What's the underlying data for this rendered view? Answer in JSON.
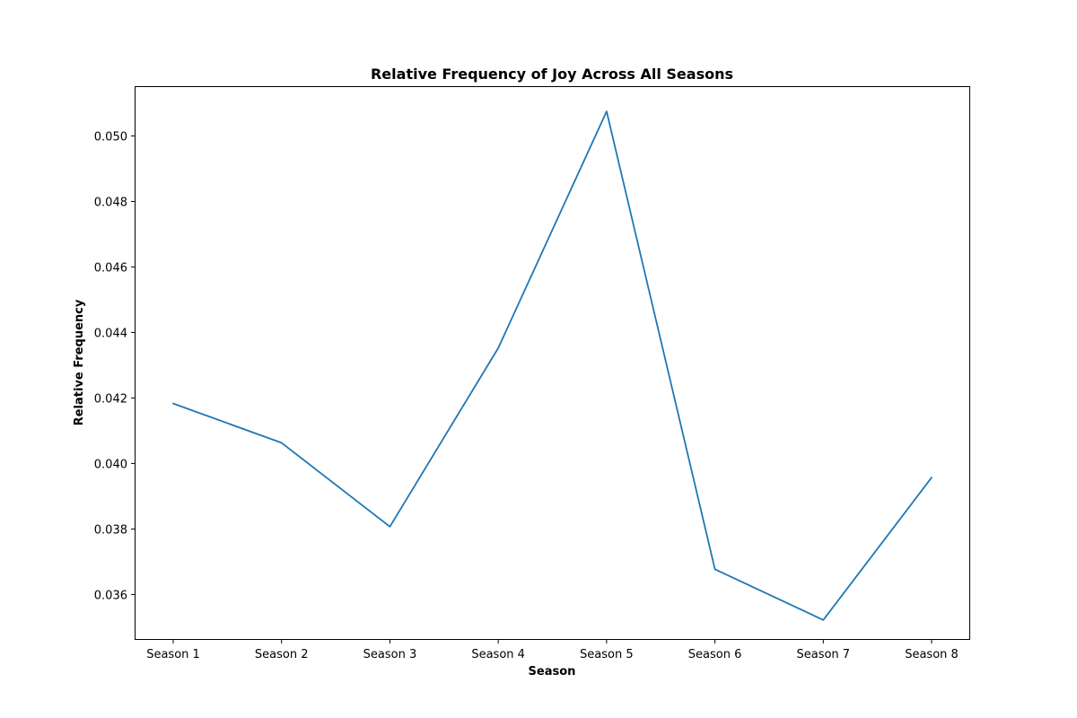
{
  "chart_data": {
    "type": "line",
    "title": "Relative Frequency of Joy Across All Seasons",
    "xlabel": "Season",
    "ylabel": "Relative Frequency",
    "categories": [
      "Season 1",
      "Season 2",
      "Season 3",
      "Season 4",
      "Season 5",
      "Season 6",
      "Season 7",
      "Season 8"
    ],
    "series": [
      {
        "name": "Joy",
        "color": "#1f77b4",
        "values": [
          0.04183,
          0.04063,
          0.03807,
          0.04352,
          0.05075,
          0.03677,
          0.03522,
          0.03957
        ]
      }
    ],
    "ylim": [
      0.03464,
      0.05152
    ],
    "yticks": [
      0.036,
      0.038,
      0.04,
      0.042,
      0.044,
      0.046,
      0.048,
      0.05
    ],
    "ytick_labels": [
      "0.036",
      "0.038",
      "0.040",
      "0.042",
      "0.044",
      "0.046",
      "0.048",
      "0.050"
    ],
    "grid": false,
    "legend": "none"
  }
}
